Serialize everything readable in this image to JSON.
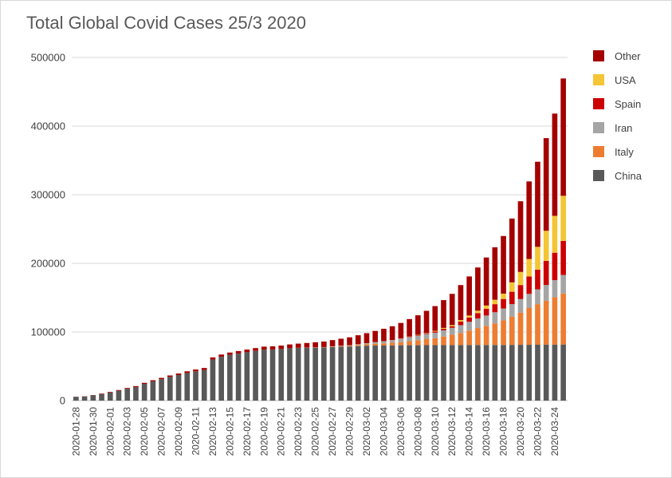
{
  "chart_data": {
    "type": "bar",
    "stacked": true,
    "title": "Total Global Covid Cases 25/3 2020",
    "xlabel": "",
    "ylabel": "",
    "ylim": [
      0,
      500000
    ],
    "yticks": [
      0,
      100000,
      200000,
      300000,
      400000,
      500000
    ],
    "ytick_labels": [
      "0",
      "100000",
      "200000",
      "300000",
      "400000",
      "500000"
    ],
    "gridlines": true,
    "legend_position": "right",
    "categories": [
      "2020-01-28",
      "2020-01-29",
      "2020-01-30",
      "2020-01-31",
      "2020-02-01",
      "2020-02-02",
      "2020-02-03",
      "2020-02-04",
      "2020-02-05",
      "2020-02-06",
      "2020-02-07",
      "2020-02-08",
      "2020-02-09",
      "2020-02-10",
      "2020-02-11",
      "2020-02-12",
      "2020-02-13",
      "2020-02-14",
      "2020-02-15",
      "2020-02-16",
      "2020-02-17",
      "2020-02-18",
      "2020-02-19",
      "2020-02-20",
      "2020-02-21",
      "2020-02-22",
      "2020-02-23",
      "2020-02-24",
      "2020-02-25",
      "2020-02-26",
      "2020-02-27",
      "2020-02-28",
      "2020-02-29",
      "2020-03-01",
      "2020-03-02",
      "2020-03-03",
      "2020-03-04",
      "2020-03-05",
      "2020-03-06",
      "2020-03-07",
      "2020-03-08",
      "2020-03-09",
      "2020-03-10",
      "2020-03-11",
      "2020-03-12",
      "2020-03-13",
      "2020-03-14",
      "2020-03-15",
      "2020-03-16",
      "2020-03-17",
      "2020-03-18",
      "2020-03-19",
      "2020-03-20",
      "2020-03-21",
      "2020-03-22",
      "2020-03-23",
      "2020-03-24",
      "2020-03-25"
    ],
    "x_tick_labels": [
      "2020-01-28",
      "2020-01-30",
      "2020-02-01",
      "2020-02-03",
      "2020-02-05",
      "2020-02-07",
      "2020-02-09",
      "2020-02-11",
      "2020-02-13",
      "2020-02-15",
      "2020-02-17",
      "2020-02-19",
      "2020-02-21",
      "2020-02-23",
      "2020-02-25",
      "2020-02-27",
      "2020-02-29",
      "2020-03-02",
      "2020-03-04",
      "2020-03-06",
      "2020-03-08",
      "2020-03-10",
      "2020-03-12",
      "2020-03-14",
      "2020-03-16",
      "2020-03-18",
      "2020-03-20",
      "2020-03-22",
      "2020-03-24"
    ],
    "series": [
      {
        "name": "China",
        "color": "#595959",
        "values": [
          5500,
          6000,
          7700,
          9700,
          11800,
          14400,
          17200,
          19700,
          24400,
          28000,
          31200,
          34500,
          37200,
          40200,
          42600,
          44600,
          59800,
          63800,
          66500,
          68500,
          70500,
          72400,
          74300,
          74500,
          75100,
          76200,
          76800,
          77000,
          77200,
          77400,
          78200,
          78600,
          78900,
          79400,
          80000,
          80200,
          80300,
          80500,
          80600,
          80700,
          80700,
          80800,
          80800,
          80900,
          80900,
          80900,
          80900,
          81000,
          81000,
          81100,
          81100,
          81200,
          81300,
          81300,
          81400,
          81500,
          81600,
          81700
        ]
      },
      {
        "name": "Italy",
        "color": "#ed7d31",
        "values": [
          0,
          0,
          0,
          2,
          2,
          2,
          2,
          2,
          2,
          2,
          3,
          3,
          3,
          3,
          3,
          3,
          3,
          3,
          3,
          3,
          3,
          3,
          3,
          3,
          20,
          60,
          150,
          230,
          320,
          450,
          650,
          890,
          1130,
          1690,
          2040,
          2500,
          3090,
          3860,
          4640,
          5880,
          7380,
          9170,
          10150,
          12460,
          15110,
          17660,
          21160,
          24750,
          27980,
          31510,
          35710,
          41040,
          47020,
          53580,
          59140,
          63930,
          69180,
          74390
        ]
      },
      {
        "name": "Iran",
        "color": "#a5a5a5",
        "values": [
          0,
          0,
          0,
          0,
          0,
          0,
          0,
          0,
          0,
          0,
          0,
          0,
          0,
          0,
          0,
          0,
          0,
          0,
          0,
          0,
          0,
          0,
          2,
          5,
          18,
          28,
          43,
          61,
          95,
          139,
          245,
          388,
          593,
          978,
          1501,
          2336,
          2922,
          3513,
          4747,
          5823,
          6566,
          7161,
          8042,
          9000,
          10075,
          11364,
          12729,
          13938,
          14991,
          16169,
          17361,
          18407,
          19644,
          20610,
          21638,
          23049,
          24811,
          27017
        ]
      },
      {
        "name": "Spain",
        "color": "#cc0000",
        "values": [
          0,
          0,
          0,
          0,
          1,
          1,
          1,
          1,
          1,
          1,
          1,
          1,
          2,
          2,
          2,
          2,
          2,
          2,
          2,
          2,
          2,
          2,
          2,
          2,
          2,
          2,
          2,
          2,
          6,
          13,
          15,
          32,
          45,
          84,
          120,
          165,
          222,
          259,
          400,
          500,
          673,
          1073,
          1695,
          2277,
          2277,
          5232,
          6391,
          7798,
          9942,
          11748,
          13910,
          17963,
          20410,
          25374,
          28603,
          35136,
          39885,
          49515
        ]
      },
      {
        "name": "USA",
        "color": "#f4c534",
        "values": [
          5,
          5,
          5,
          6,
          8,
          8,
          11,
          11,
          12,
          12,
          12,
          12,
          12,
          12,
          13,
          13,
          15,
          15,
          15,
          15,
          15,
          15,
          15,
          15,
          35,
          35,
          35,
          53,
          53,
          59,
          60,
          62,
          70,
          74,
          98,
          118,
          149,
          217,
          262,
          402,
          518,
          583,
          959,
          1281,
          1663,
          2179,
          2727,
          3499,
          4632,
          6421,
          7783,
          13677,
          19100,
          25489,
          33276,
          43847,
          53740,
          65778
        ]
      },
      {
        "name": "Other",
        "color": "#a50000",
        "values": [
          200,
          300,
          400,
          600,
          900,
          1000,
          1200,
          1400,
          1500,
          1700,
          1900,
          2100,
          2300,
          2500,
          2700,
          2900,
          3100,
          3300,
          3500,
          3700,
          3900,
          4100,
          4300,
          4600,
          5000,
          5500,
          6000,
          6600,
          7300,
          8000,
          9000,
          10200,
          11500,
          13000,
          14500,
          16200,
          18000,
          20000,
          22500,
          25500,
          28500,
          32000,
          36000,
          40500,
          45500,
          51000,
          57000,
          63000,
          70000,
          76500,
          84000,
          93000,
          103000,
          113000,
          124000,
          135000,
          149000,
          171000
        ]
      }
    ]
  }
}
